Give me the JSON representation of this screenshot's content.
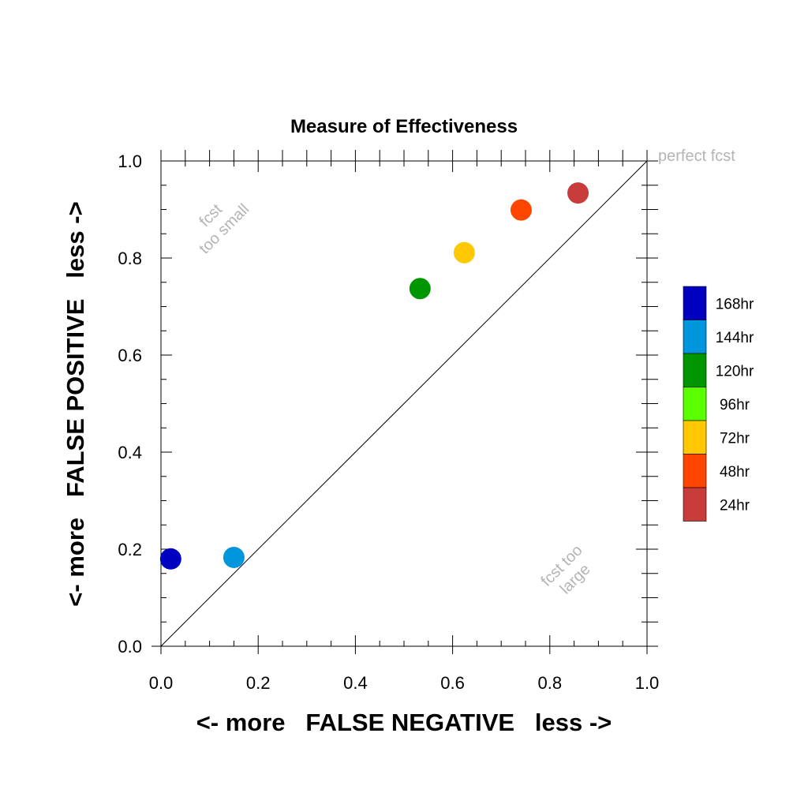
{
  "chart_data": {
    "type": "scatter",
    "title": "Measure of Effectiveness",
    "xlabel": "<- more   FALSE NEGATIVE   less ->",
    "ylabel": "<- more   FALSE POSITIVE   less ->",
    "xlim": [
      0.0,
      1.0
    ],
    "ylim": [
      0.0,
      1.0
    ],
    "x_ticks": [
      "0.0",
      "0.2",
      "0.4",
      "0.6",
      "0.8",
      "1.0"
    ],
    "y_ticks": [
      "0.0",
      "0.2",
      "0.4",
      "0.6",
      "0.8",
      "1.0"
    ],
    "grid": false,
    "legend_placement": "right",
    "diagonal": {
      "from": [
        0,
        0
      ],
      "to": [
        1,
        1
      ]
    },
    "annotations": {
      "perfect": "perfect fcst",
      "small_line1": "fcst",
      "small_line2": "too small",
      "large_line1": "fcst too",
      "large_line2": "large"
    },
    "legend": [
      {
        "label": "168hr",
        "color": "#0000c0"
      },
      {
        "label": "144hr",
        "color": "#0096dc"
      },
      {
        "label": "120hr",
        "color": "#009600"
      },
      {
        "label": "96hr",
        "color": "#5aff00"
      },
      {
        "label": "72hr",
        "color": "#ffc800"
      },
      {
        "label": "48hr",
        "color": "#ff4600"
      },
      {
        "label": "24hr",
        "color": "#c83c3c"
      }
    ],
    "points": [
      {
        "lead": "168hr",
        "x": 0.02,
        "y": 0.18,
        "color": "#0000c0"
      },
      {
        "lead": "144hr",
        "x": 0.15,
        "y": 0.183,
        "color": "#0096dc"
      },
      {
        "lead": "120hr",
        "x": 0.533,
        "y": 0.737,
        "color": "#009600"
      },
      {
        "lead": "72hr",
        "x": 0.624,
        "y": 0.811,
        "color": "#ffc800"
      },
      {
        "lead": "48hr",
        "x": 0.741,
        "y": 0.899,
        "color": "#ff4600"
      },
      {
        "lead": "24hr",
        "x": 0.858,
        "y": 0.934,
        "color": "#c83c3c"
      }
    ]
  }
}
